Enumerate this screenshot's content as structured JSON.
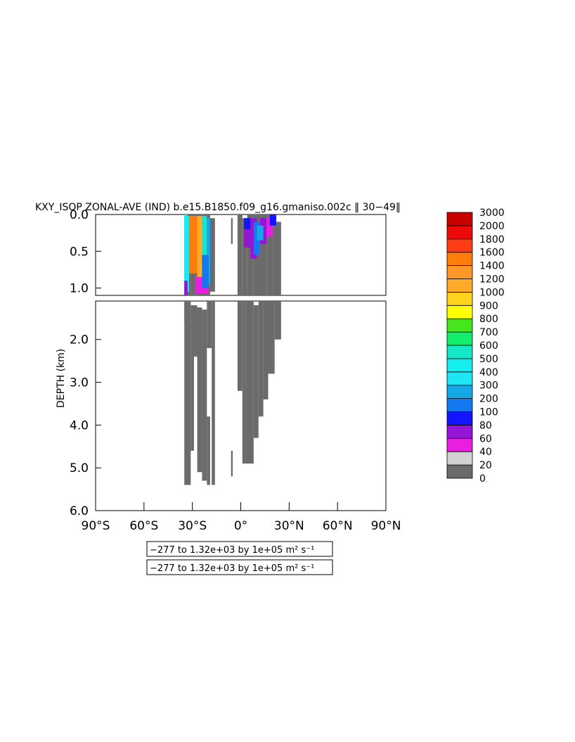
{
  "chart_data": {
    "type": "heatmap",
    "title": "KXY_ISOP ZONAL-AVE (IND) b.e15.B1850.f09_g16.gmaniso.002c ‖ 30−49‖",
    "ylabel": "DEPTH (km)",
    "xlabel": "",
    "x_ticks": [
      "90°S",
      "60°S",
      "30°S",
      "0°",
      "30°N",
      "60°N",
      "90°N"
    ],
    "x_tick_values": [
      -90,
      -60,
      -30,
      0,
      30,
      60,
      90
    ],
    "xlim": [
      -90,
      90
    ],
    "upper_panel": {
      "ylim": [
        0,
        1.1
      ],
      "y_ticks": [
        "0.0",
        "0.5",
        "1.0"
      ],
      "y_tick_values": [
        0.0,
        0.5,
        1.0
      ]
    },
    "lower_panel": {
      "ylim": [
        1.1,
        6.0
      ],
      "y_ticks": [
        "2.0",
        "3.0",
        "4.0",
        "5.0",
        "6.0"
      ],
      "y_tick_values": [
        2.0,
        3.0,
        4.0,
        5.0,
        6.0
      ]
    },
    "colorbar": {
      "levels": [
        "0",
        "20",
        "40",
        "60",
        "80",
        "100",
        "200",
        "300",
        "400",
        "500",
        "600",
        "700",
        "800",
        "900",
        "1000",
        "1200",
        "1400",
        "1600",
        "1800",
        "2000",
        "3000"
      ],
      "colors": [
        "#6b6b6b",
        "#d2d2d2",
        "#e81fe0",
        "#9614d8",
        "#1414ff",
        "#1478f0",
        "#14a8e6",
        "#1ee6f5",
        "#14eef0",
        "#14e8c8",
        "#14ee6e",
        "#46e61e",
        "#ffff00",
        "#ffd21e",
        "#ffaa28",
        "#ff9628",
        "#ff7d0a",
        "#ff3c14",
        "#ee0a0a",
        "#c80000"
      ]
    },
    "regions": [
      {
        "x": [
          -35,
          -30
        ],
        "depth": [
          0.0,
          1.1
        ],
        "value": "1400-1600"
      },
      {
        "x": [
          -35,
          -18
        ],
        "depth": [
          0.0,
          1.1
        ],
        "value": "300-600"
      },
      {
        "x": [
          -35,
          -16
        ],
        "depth": [
          0.0,
          1.6
        ],
        "value": "40-200"
      },
      {
        "x": [
          -35,
          -16
        ],
        "depth": [
          1.1,
          5.4
        ],
        "value": "0-20"
      },
      {
        "x": [
          -2,
          10
        ],
        "depth": [
          0.0,
          4.9
        ],
        "value": "0-20"
      },
      {
        "x": [
          0,
          20
        ],
        "depth": [
          0.0,
          0.6
        ],
        "value": "60-300"
      },
      {
        "x": [
          10,
          25
        ],
        "depth": [
          0.5,
          3.9
        ],
        "value": "0-20"
      }
    ],
    "legend": [
      "−277 to 1.32e+03 by 1e+05 m² s⁻¹",
      "−277 to 1.32e+03 by 1e+05 m² s⁻¹"
    ]
  }
}
